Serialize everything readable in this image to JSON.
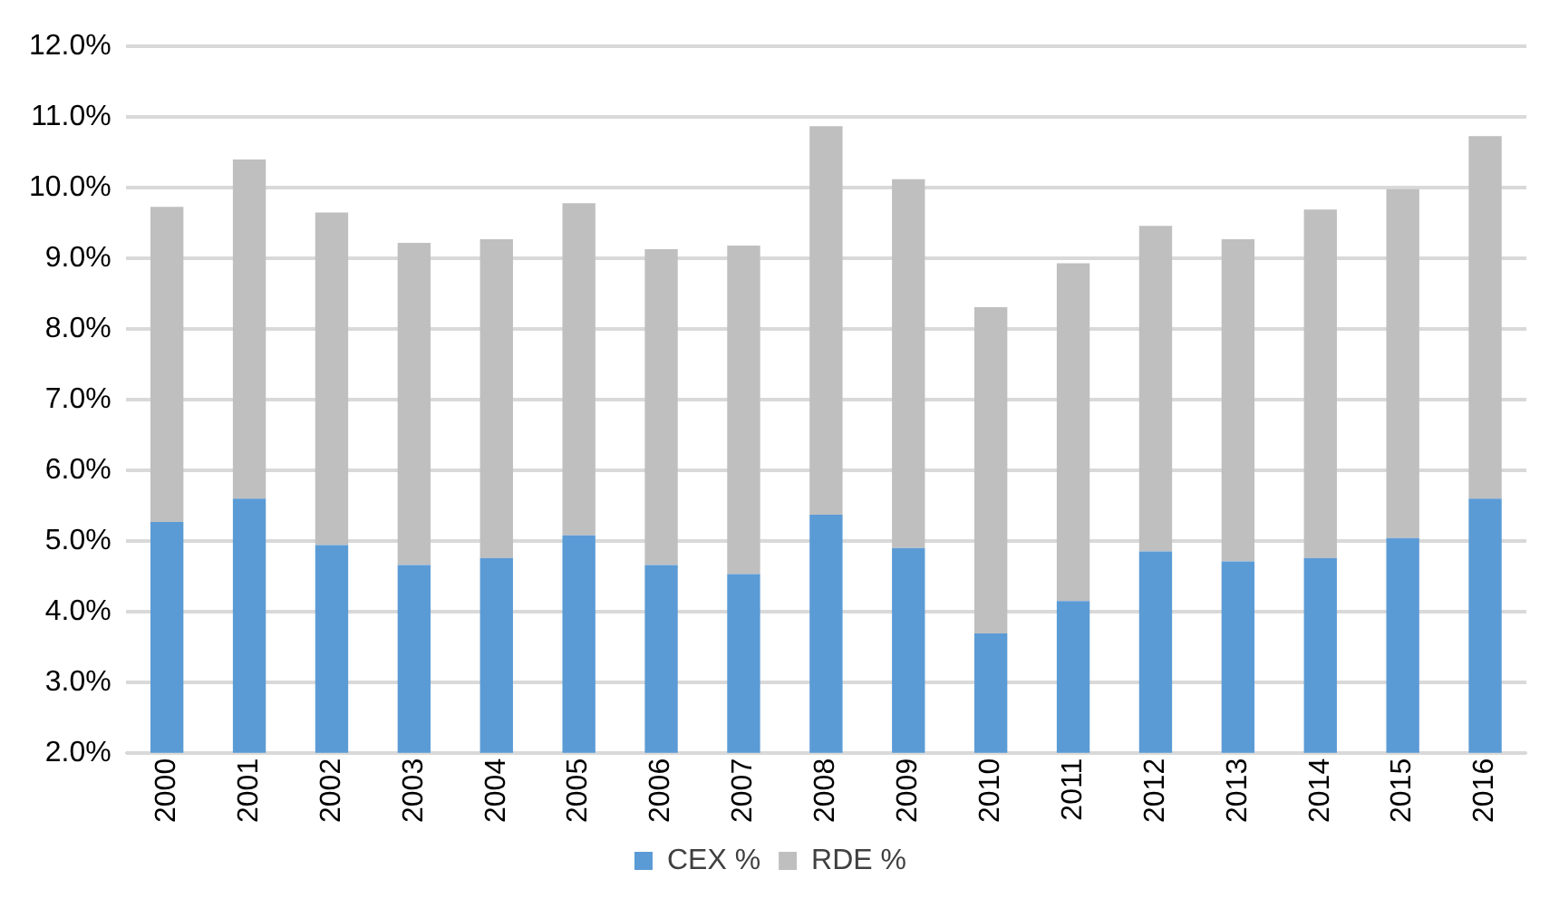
{
  "chart_data": {
    "type": "bar",
    "stacked": true,
    "categories": [
      "2000",
      "2001",
      "2002",
      "2003",
      "2004",
      "2005",
      "2006",
      "2007",
      "2008",
      "2009",
      "2010",
      "2011",
      "2012",
      "2013",
      "2014",
      "2015",
      "2016"
    ],
    "series": [
      {
        "name": "CEX %",
        "color": "#5b9bd5",
        "values": [
          5.27,
          5.6,
          4.94,
          4.66,
          4.76,
          5.08,
          4.66,
          4.53,
          5.37,
          4.9,
          3.69,
          4.15,
          4.85,
          4.71,
          4.76,
          5.04,
          5.6
        ]
      },
      {
        "name": "RDE %",
        "color": "#bfbfbf",
        "values": [
          4.46,
          4.8,
          4.71,
          4.56,
          4.51,
          4.7,
          4.47,
          4.65,
          5.5,
          5.22,
          4.62,
          4.78,
          4.61,
          4.56,
          4.93,
          4.94,
          5.13
        ]
      }
    ],
    "ylim": [
      2,
      12
    ],
    "yticks": [
      {
        "value": 2,
        "label": "2.0%"
      },
      {
        "value": 3,
        "label": "3.0%"
      },
      {
        "value": 4,
        "label": "4.0%"
      },
      {
        "value": 5,
        "label": "5.0%"
      },
      {
        "value": 6,
        "label": "6.0%"
      },
      {
        "value": 7,
        "label": "7.0%"
      },
      {
        "value": 8,
        "label": "8.0%"
      },
      {
        "value": 9,
        "label": "9.0%"
      },
      {
        "value": 10,
        "label": "10.0%"
      },
      {
        "value": 11,
        "label": "11.0%"
      },
      {
        "value": 12,
        "label": "12.0%"
      }
    ],
    "grid": "y",
    "legend": "bottom"
  }
}
